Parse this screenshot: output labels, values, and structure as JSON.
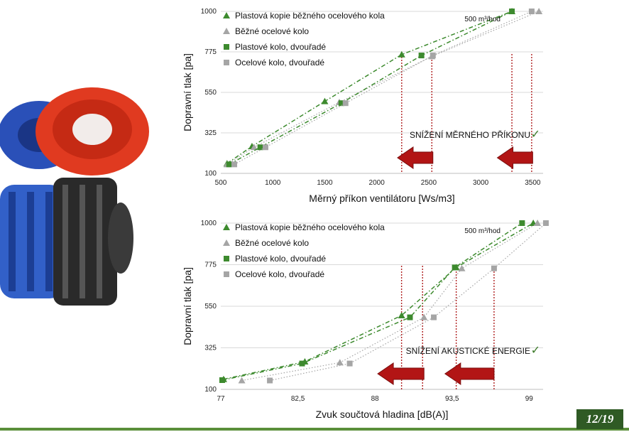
{
  "colors": {
    "plastic_green": "#3d8a2e",
    "steel_grey": "#a5a5a5",
    "drop_line_red": "#b02020",
    "arrow_red": "#b21515",
    "check_green": "#3c7a28",
    "badge_bg": "#2f5a24"
  },
  "images": {
    "fans": "fan-wheels-photo"
  },
  "page_badge": "12/19",
  "chart_data": [
    {
      "type": "scatter",
      "xlabel": "Měrný příkon ventilátoru [Ws/m3]",
      "ylabel": "Dopravní tlak [pa]",
      "xlim": [
        500,
        3600
      ],
      "ylim": [
        100,
        1000
      ],
      "xticks": [
        "500",
        "1000",
        "1500",
        "2000",
        "2500",
        "3000",
        "3500"
      ],
      "xtick_values": [
        500,
        1000,
        1500,
        2000,
        2500,
        3000,
        3500
      ],
      "yticks": [
        "100",
        "325",
        "550",
        "775",
        "1000"
      ],
      "ytick_values": [
        100,
        325,
        550,
        775,
        1000
      ],
      "grid": "horizontal",
      "legend_position": "top-left",
      "note": "500 m³/hod",
      "annotation": "SNÍŽENÍ MĚRNÉHO PŘÍKONU",
      "check_mark": "✓",
      "series": [
        {
          "name": "Plastová kopie běžného ocelového kola",
          "marker": "triangle",
          "color": "#3d8a2e",
          "line": "dashdot",
          "x": [
            560,
            800,
            1500,
            2240,
            3300
          ],
          "y": [
            155,
            250,
            500,
            760,
            1000
          ]
        },
        {
          "name": "Běžné ocelové kolo",
          "marker": "triangle",
          "color": "#a5a5a5",
          "line": "dotted",
          "x": [
            560,
            820,
            1640,
            2530,
            3560
          ],
          "y": [
            150,
            245,
            495,
            750,
            1000
          ]
        },
        {
          "name": "Plastové kolo, dvouřadé",
          "marker": "square",
          "color": "#3d8a2e",
          "line": "dashdot",
          "x": [
            580,
            880,
            1660,
            2430,
            3300
          ],
          "y": [
            150,
            245,
            490,
            755,
            1000
          ]
        },
        {
          "name": "Ocelové kolo, dvouřadé",
          "marker": "square",
          "color": "#a5a5a5",
          "line": "dotted",
          "x": [
            630,
            930,
            1700,
            2540,
            3490
          ],
          "y": [
            150,
            245,
            490,
            755,
            1000
          ]
        }
      ],
      "drop_lines_x": [
        2240,
        2530,
        3300,
        3490
      ],
      "arrows_x": [
        [
          2540,
          2200
        ],
        [
          3500,
          3160
        ]
      ]
    },
    {
      "type": "scatter",
      "xlabel": "Zvuk součtová hladina [dB(A)]",
      "ylabel": "Dopravní tlak [pa]",
      "xlim": [
        77,
        100
      ],
      "ylim": [
        100,
        1000
      ],
      "xticks": [
        "77",
        "82,5",
        "88",
        "93,5",
        "99"
      ],
      "xtick_values": [
        77,
        82.5,
        88,
        93.5,
        99
      ],
      "yticks": [
        "100",
        "325",
        "550",
        "775",
        "1000"
      ],
      "ytick_values": [
        100,
        325,
        550,
        775,
        1000
      ],
      "grid": "horizontal",
      "legend_position": "top-left",
      "note": "500 m³/hod",
      "annotation": "SNÍŽENÍ AKUSTICKÉ ENERGIE",
      "check_mark": "✓",
      "series": [
        {
          "name": "Plastová kopie běžného ocelového kola",
          "marker": "triangle",
          "color": "#3d8a2e",
          "line": "dashdot",
          "x": [
            77.2,
            83.0,
            89.9,
            93.8,
            99.3
          ],
          "y": [
            155,
            250,
            500,
            760,
            1000
          ]
        },
        {
          "name": "Běžné ocelové kolo",
          "marker": "triangle",
          "color": "#a5a5a5",
          "line": "dotted",
          "x": [
            78.5,
            85.5,
            91.5,
            94.2,
            99.6
          ],
          "y": [
            148,
            245,
            490,
            755,
            1000
          ]
        },
        {
          "name": "Plastové kolo, dvouřadé",
          "marker": "square",
          "color": "#3d8a2e",
          "line": "dashdot",
          "x": [
            77.1,
            82.8,
            90.5,
            93.7,
            98.5
          ],
          "y": [
            150,
            240,
            490,
            760,
            1000
          ]
        },
        {
          "name": "Ocelové kolo, dvouřadé",
          "marker": "square",
          "color": "#a5a5a5",
          "line": "dotted",
          "x": [
            80.5,
            86.2,
            92.2,
            96.5,
            100.2
          ],
          "y": [
            148,
            240,
            490,
            755,
            1000
          ]
        }
      ],
      "drop_lines_x": [
        89.9,
        91.4,
        93.8,
        96.5
      ],
      "arrows_x": [
        [
          91.5,
          88.2
        ],
        [
          96.5,
          93.0
        ]
      ]
    }
  ]
}
